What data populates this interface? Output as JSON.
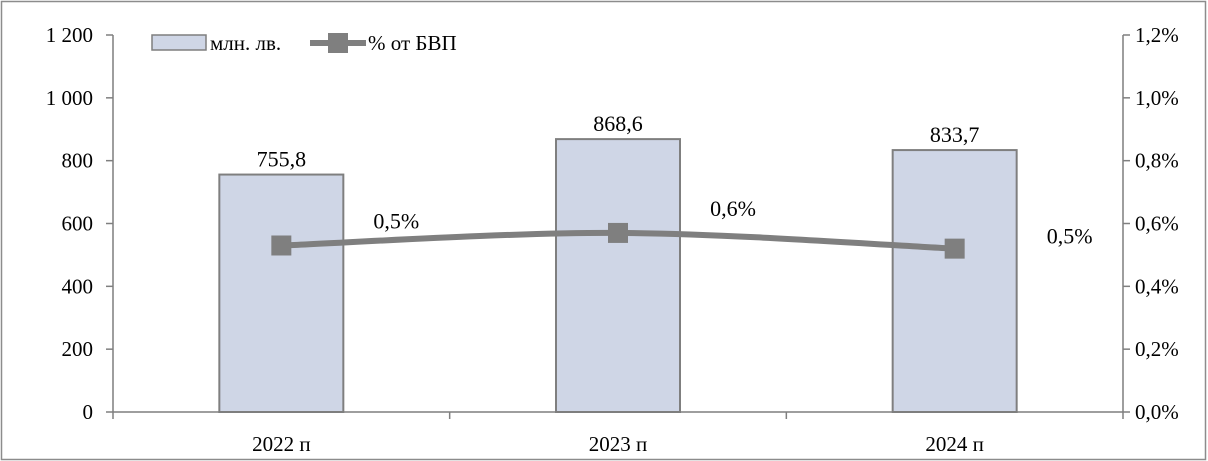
{
  "chart_data": {
    "type": "bar",
    "categories": [
      "2022 п",
      "2023 п",
      "2024 п"
    ],
    "series": [
      {
        "name": "млн. лв.",
        "type": "bar",
        "axis": "left",
        "values": [
          755.8,
          868.6,
          833.7
        ],
        "labels": [
          "755,8",
          "868,6",
          "833,7"
        ],
        "color": "#cfd6e6"
      },
      {
        "name": "% от БВП",
        "type": "line",
        "axis": "right",
        "values": [
          0.53,
          0.57,
          0.52
        ],
        "labels": [
          "0,5%",
          "0,6%",
          "0,5%"
        ],
        "color": "#7f7f7f"
      }
    ],
    "y_left": {
      "ylim": [
        0,
        1200
      ],
      "ticks": [
        0,
        200,
        400,
        600,
        800,
        1000,
        1200
      ],
      "tick_labels": [
        "0",
        "200",
        "400",
        "600",
        "800",
        "1 000",
        "1 200"
      ]
    },
    "y_right": {
      "ylim": [
        0,
        1.2
      ],
      "ticks": [
        0,
        0.2,
        0.4,
        0.6,
        0.8,
        1.0,
        1.2
      ],
      "tick_labels": [
        "0,0%",
        "0,2%",
        "0,4%",
        "0,6%",
        "0,8%",
        "1,0%",
        "1,2%"
      ]
    },
    "grid": false,
    "legend_position": "top-left",
    "title": "",
    "xlabel": "",
    "ylabel": ""
  }
}
